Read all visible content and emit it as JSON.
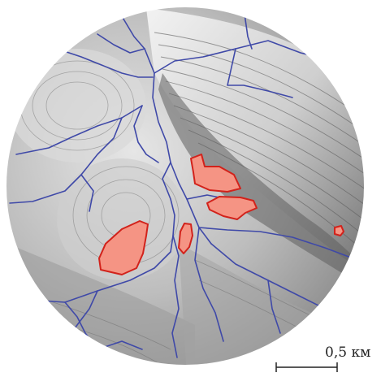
{
  "map": {
    "scale_label": "0,5 км",
    "colors": {
      "streams": "#3f49a8",
      "patch_fill": "#f59484",
      "patch_stroke": "#d2221b",
      "relief_light": "#e8e8e8",
      "relief_mid": "#9a9a9a",
      "relief_dark": "#3a3a3a"
    },
    "patches": [
      {
        "name": "patch-upper-center"
      },
      {
        "name": "patch-center-east"
      },
      {
        "name": "patch-southwest-large"
      },
      {
        "name": "patch-center-small"
      },
      {
        "name": "patch-east-tiny"
      }
    ]
  }
}
